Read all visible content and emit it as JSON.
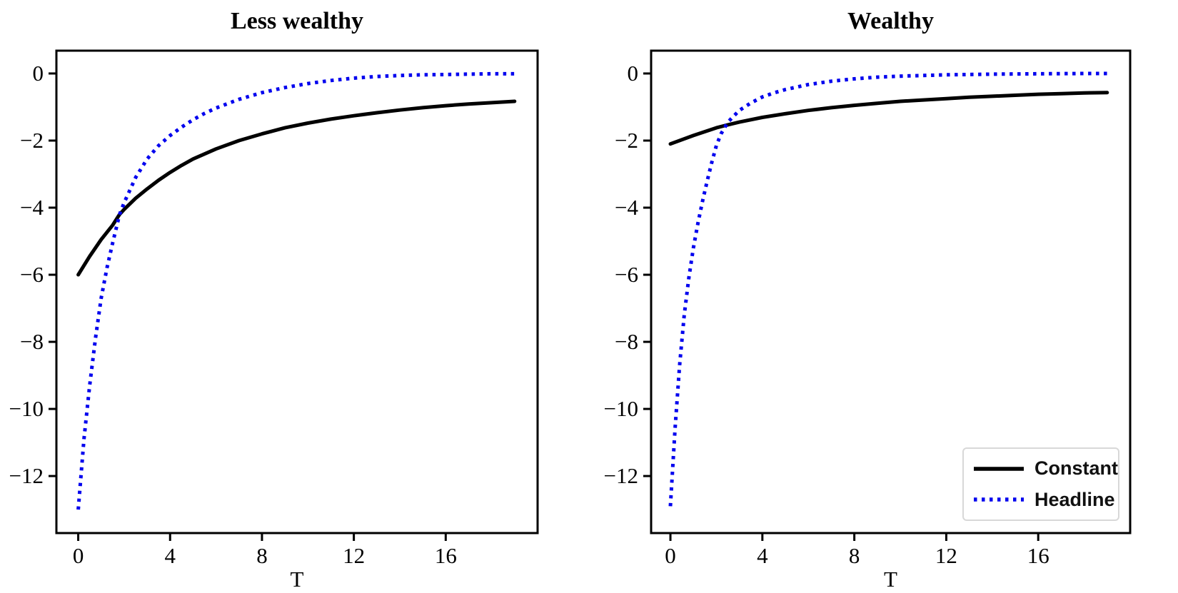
{
  "figure": {
    "background": "#ffffff",
    "axis_color": "#000000",
    "tick_label_color": "#000000"
  },
  "chart_data": [
    {
      "type": "line",
      "title": "Less wealthy",
      "xlabel": "T",
      "ylabel": "",
      "xlim": [
        -0.95,
        20.0
      ],
      "ylim": [
        -13.7,
        0.68
      ],
      "x_ticks": [
        0,
        4,
        8,
        12,
        16
      ],
      "x_tick_labels": [
        "0",
        "4",
        "8",
        "12",
        "16"
      ],
      "y_ticks": [
        0,
        -2,
        -4,
        -6,
        -8,
        -10,
        -12
      ],
      "y_tick_labels": [
        "0",
        "−2",
        "−4",
        "−6",
        "−8",
        "−10",
        "−12"
      ],
      "grid": false,
      "series": [
        {
          "name": "Constant",
          "color": "#000000",
          "style": "solid",
          "points": [
            [
              0,
              -6.0
            ],
            [
              0.5,
              -5.45
            ],
            [
              1,
              -4.95
            ],
            [
              1.5,
              -4.52
            ],
            [
              1.8,
              -4.2
            ],
            [
              2,
              -4.05
            ],
            [
              2.5,
              -3.72
            ],
            [
              3,
              -3.44
            ],
            [
              3.5,
              -3.18
            ],
            [
              4,
              -2.95
            ],
            [
              4.5,
              -2.74
            ],
            [
              5,
              -2.55
            ],
            [
              6,
              -2.25
            ],
            [
              7,
              -2.0
            ],
            [
              8,
              -1.8
            ],
            [
              9,
              -1.62
            ],
            [
              10,
              -1.48
            ],
            [
              11,
              -1.36
            ],
            [
              12,
              -1.26
            ],
            [
              13,
              -1.17
            ],
            [
              14,
              -1.09
            ],
            [
              15,
              -1.02
            ],
            [
              16,
              -0.96
            ],
            [
              17,
              -0.91
            ],
            [
              18,
              -0.87
            ],
            [
              19,
              -0.83
            ]
          ]
        },
        {
          "name": "Headline",
          "color": "#0000ee",
          "style": "dotted",
          "points": [
            [
              0,
              -13.0
            ],
            [
              0.25,
              -10.9
            ],
            [
              0.5,
              -9.3
            ],
            [
              0.75,
              -7.9
            ],
            [
              1,
              -6.7
            ],
            [
              1.25,
              -5.8
            ],
            [
              1.5,
              -5.05
            ],
            [
              1.8,
              -4.2
            ],
            [
              2,
              -3.85
            ],
            [
              2.5,
              -3.1
            ],
            [
              3,
              -2.55
            ],
            [
              3.5,
              -2.15
            ],
            [
              4,
              -1.85
            ],
            [
              4.5,
              -1.6
            ],
            [
              5,
              -1.38
            ],
            [
              5.5,
              -1.19
            ],
            [
              6,
              -1.03
            ],
            [
              7,
              -0.77
            ],
            [
              8,
              -0.57
            ],
            [
              9,
              -0.42
            ],
            [
              10,
              -0.3
            ],
            [
              11,
              -0.21
            ],
            [
              12,
              -0.14
            ],
            [
              13,
              -0.09
            ],
            [
              14,
              -0.06
            ],
            [
              15,
              -0.04
            ],
            [
              16,
              -0.03
            ],
            [
              17,
              -0.02
            ],
            [
              18,
              -0.01
            ],
            [
              19,
              -0.01
            ]
          ]
        }
      ]
    },
    {
      "type": "line",
      "title": "Wealthy",
      "xlabel": "T",
      "ylabel": "",
      "xlim": [
        -0.84,
        20.0
      ],
      "ylim": [
        -13.7,
        0.68
      ],
      "x_ticks": [
        0,
        4,
        8,
        12,
        16
      ],
      "x_tick_labels": [
        "0",
        "4",
        "8",
        "12",
        "16"
      ],
      "y_ticks": [
        0,
        -2,
        -4,
        -6,
        -8,
        -10,
        -12
      ],
      "y_tick_labels": [
        "0",
        "−2",
        "−4",
        "−6",
        "−8",
        "−10",
        "−12"
      ],
      "grid": false,
      "series": [
        {
          "name": "Constant",
          "color": "#000000",
          "style": "solid",
          "points": [
            [
              0,
              -2.1
            ],
            [
              1,
              -1.85
            ],
            [
              2,
              -1.62
            ],
            [
              2.5,
              -1.53
            ],
            [
              3,
              -1.45
            ],
            [
              4,
              -1.31
            ],
            [
              5,
              -1.2
            ],
            [
              6,
              -1.1
            ],
            [
              7,
              -1.02
            ],
            [
              8,
              -0.95
            ],
            [
              9,
              -0.89
            ],
            [
              10,
              -0.83
            ],
            [
              11,
              -0.79
            ],
            [
              12,
              -0.75
            ],
            [
              13,
              -0.71
            ],
            [
              14,
              -0.68
            ],
            [
              15,
              -0.65
            ],
            [
              16,
              -0.62
            ],
            [
              17,
              -0.6
            ],
            [
              18,
              -0.58
            ],
            [
              19,
              -0.57
            ]
          ]
        },
        {
          "name": "Headline",
          "color": "#0000ee",
          "style": "dotted",
          "points": [
            [
              0,
              -12.9
            ],
            [
              0.2,
              -10.6
            ],
            [
              0.4,
              -8.7
            ],
            [
              0.6,
              -7.2
            ],
            [
              0.8,
              -6.1
            ],
            [
              1,
              -5.2
            ],
            [
              1.2,
              -4.45
            ],
            [
              1.4,
              -3.8
            ],
            [
              1.6,
              -3.2
            ],
            [
              1.8,
              -2.65
            ],
            [
              2,
              -2.15
            ],
            [
              2.2,
              -1.8
            ],
            [
              2.5,
              -1.45
            ],
            [
              3,
              -1.1
            ],
            [
              3.5,
              -0.88
            ],
            [
              4,
              -0.7
            ],
            [
              4.5,
              -0.58
            ],
            [
              5,
              -0.48
            ],
            [
              6,
              -0.33
            ],
            [
              7,
              -0.23
            ],
            [
              8,
              -0.16
            ],
            [
              9,
              -0.11
            ],
            [
              10,
              -0.08
            ],
            [
              11,
              -0.06
            ],
            [
              12,
              -0.04
            ],
            [
              13,
              -0.03
            ],
            [
              14,
              -0.02
            ],
            [
              16,
              -0.01
            ],
            [
              18,
              0
            ],
            [
              19,
              0
            ]
          ]
        }
      ],
      "legend": {
        "position": "lower right",
        "entries": [
          {
            "label": "Constant",
            "color": "#000000",
            "style": "solid"
          },
          {
            "label": "Headline",
            "color": "#0000ee",
            "style": "dotted"
          }
        ]
      }
    }
  ]
}
